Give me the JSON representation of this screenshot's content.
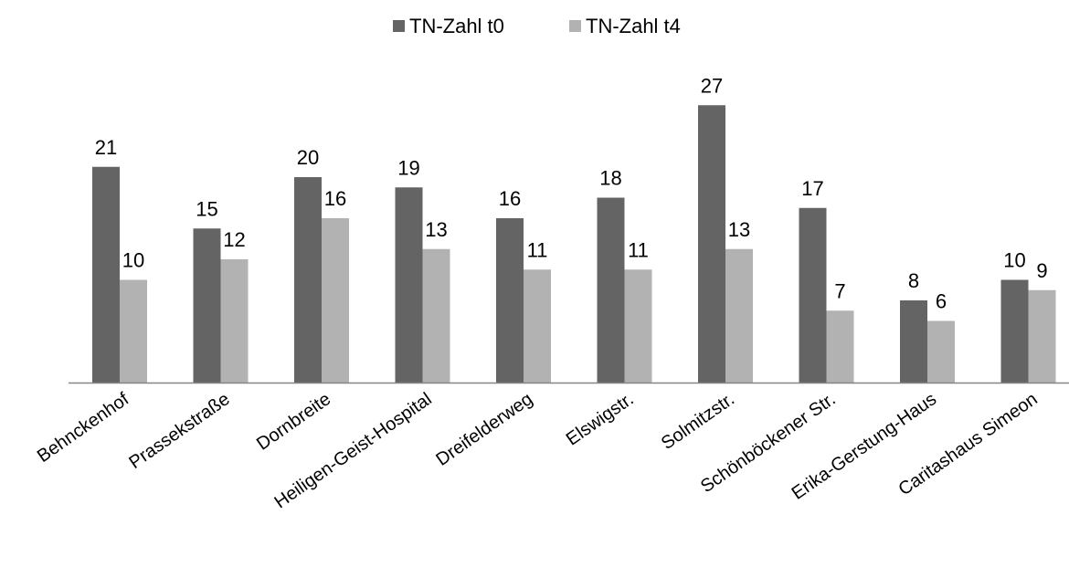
{
  "chart_data": {
    "type": "bar",
    "title": "",
    "xlabel": "",
    "ylabel": "",
    "ylim": [
      0,
      30
    ],
    "grid": false,
    "legend": "top-center",
    "categories": [
      "Behnckenhof",
      "Prassekstraße",
      "Dornbreite",
      "Heiligen-Geist-Hospital",
      "Dreifelderweg",
      "Elswigstr.",
      "Solmitzstr.",
      "Schönböckener Str.",
      "Erika-Gerstung-Haus",
      "Caritashaus Simeon"
    ],
    "series": [
      {
        "name": "TN-Zahl t0",
        "color": "#646464",
        "values": [
          21,
          15,
          20,
          19,
          16,
          18,
          27,
          17,
          8,
          10
        ]
      },
      {
        "name": "TN-Zahl t4",
        "color": "#b2b2b2",
        "values": [
          10,
          12,
          16,
          13,
          11,
          11,
          13,
          7,
          6,
          9
        ]
      }
    ]
  }
}
